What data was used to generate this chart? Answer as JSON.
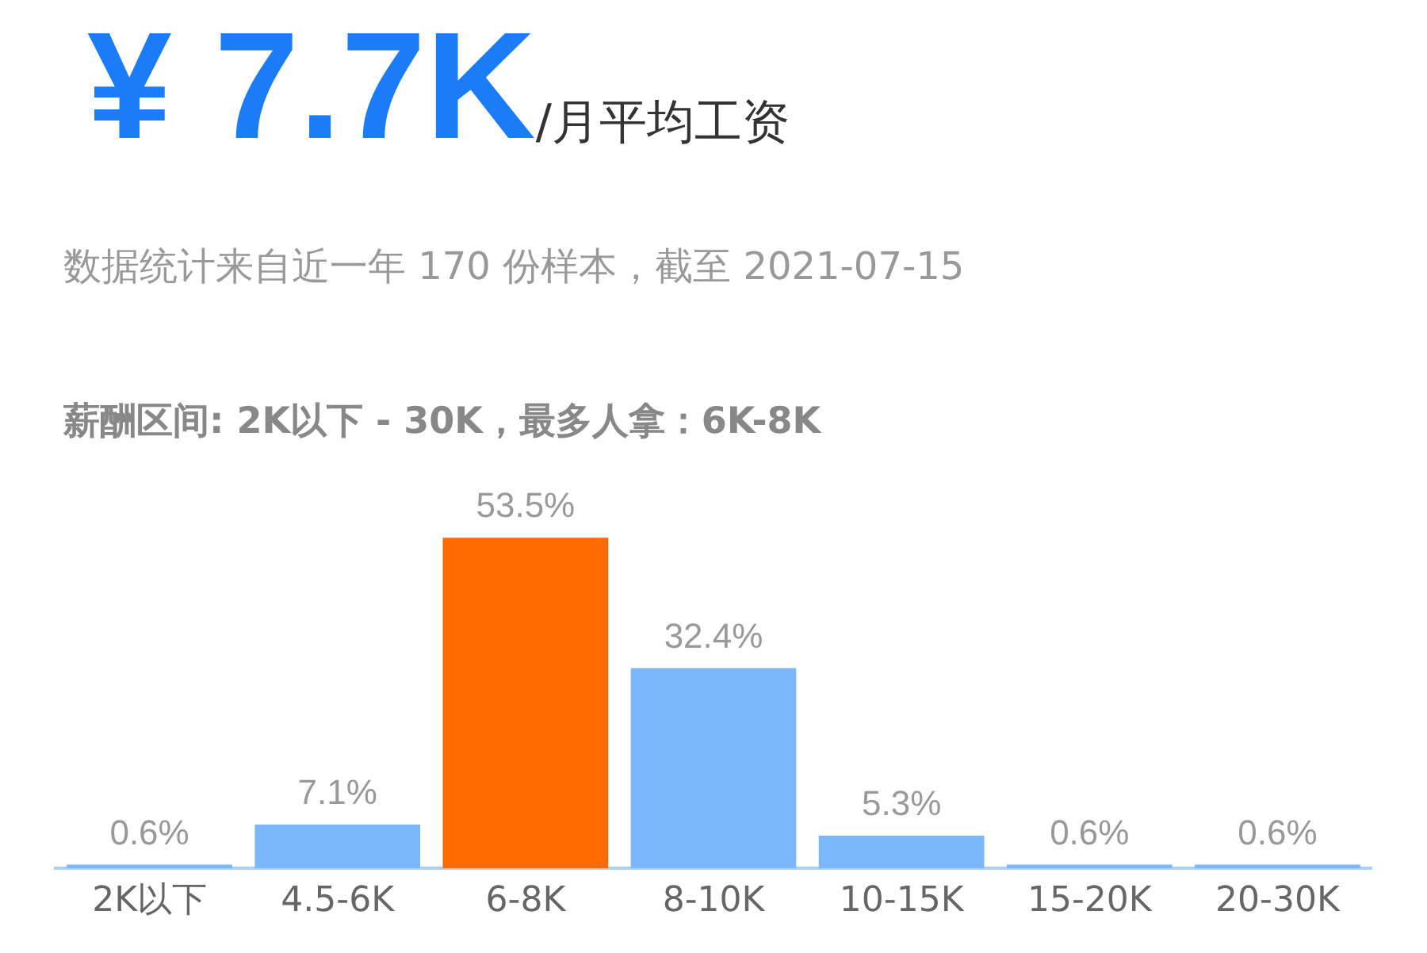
{
  "chart_data": {
    "type": "bar",
    "title": "¥ 7.7K",
    "subtitle": "/月平均工资",
    "annotations": [
      "数据统计来自近一年 170 份样本，截至 2021-07-15",
      "薪酬区间: 2K以下 - 30K，最多人拿：6K-8K"
    ],
    "categories": [
      "2K以下",
      "4.5-6K",
      "6-8K",
      "8-10K",
      "10-15K",
      "15-20K",
      "20-30K"
    ],
    "values": [
      0.6,
      7.1,
      53.5,
      32.4,
      5.3,
      0.6,
      0.6
    ],
    "value_labels": [
      "0.6%",
      "7.1%",
      "53.5%",
      "32.4%",
      "5.3%",
      "0.6%",
      "0.6%"
    ],
    "colors": [
      "#7ab8fb",
      "#7ab8fb",
      "#ff6a00",
      "#7ab8fb",
      "#7ab8fb",
      "#7ab8fb",
      "#7ab8fb"
    ],
    "grid": false,
    "legend": false
  }
}
